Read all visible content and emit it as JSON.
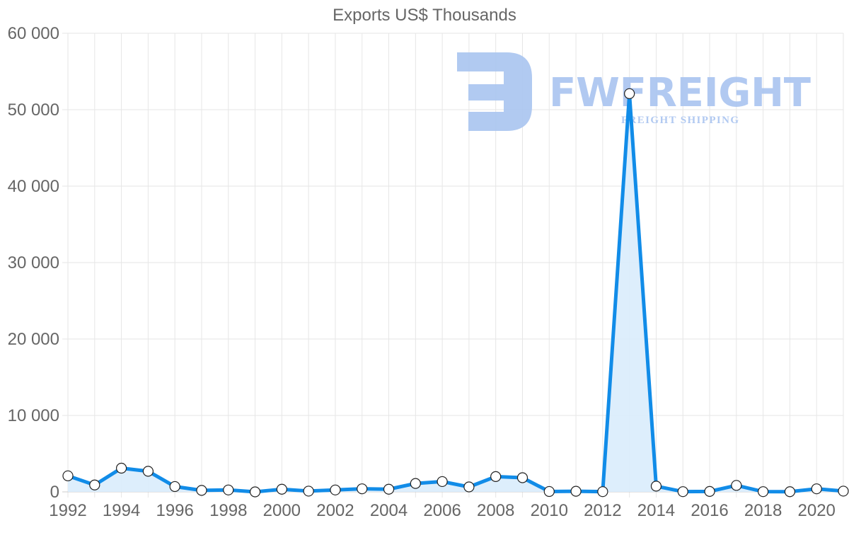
{
  "chart_data": {
    "type": "line",
    "title": "Exports US$ Thousands",
    "xlabel": "",
    "ylabel": "",
    "x": [
      1992,
      1993,
      1994,
      1995,
      1996,
      1997,
      1998,
      1999,
      2000,
      2001,
      2002,
      2003,
      2004,
      2005,
      2006,
      2007,
      2008,
      2009,
      2010,
      2011,
      2012,
      2013,
      2014,
      2015,
      2016,
      2017,
      2018,
      2019,
      2020,
      2021
    ],
    "series": [
      {
        "name": "Exports US$ Thousands",
        "values": [
          2100,
          900,
          3100,
          2700,
          700,
          200,
          250,
          0,
          350,
          100,
          250,
          400,
          350,
          1100,
          1350,
          650,
          2000,
          1850,
          50,
          80,
          30,
          52100,
          750,
          30,
          60,
          850,
          30,
          20,
          400,
          100
        ],
        "color": "#118ce8",
        "fill": "#d9ecfc"
      }
    ],
    "x_tick_labels": [
      "1992",
      "1994",
      "1996",
      "1998",
      "2000",
      "2002",
      "2004",
      "2006",
      "2008",
      "2010",
      "2012",
      "2014",
      "2016",
      "2018",
      "2020"
    ],
    "y_tick_labels": [
      "0",
      "10 000",
      "20 000",
      "30 000",
      "40 000",
      "50 000",
      "60 000"
    ],
    "ylim": [
      0,
      60000
    ],
    "grid": true,
    "legend": "none"
  },
  "watermark": {
    "brand": "FWFREIGHT",
    "tagline": "FREIGHT SHIPPING",
    "color": "#a9c4f0"
  }
}
